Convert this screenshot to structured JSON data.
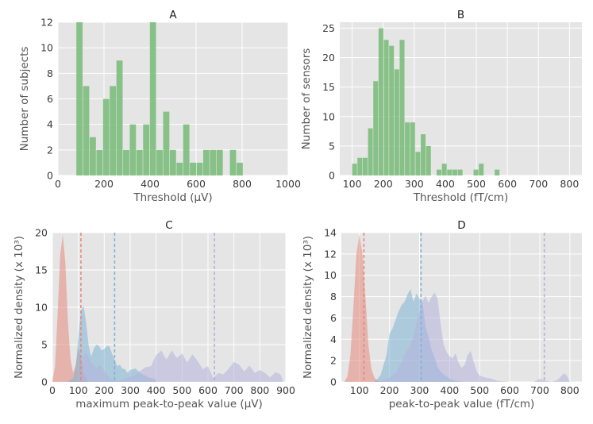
{
  "colors": {
    "panel_bg": "#e5e5e5",
    "grid": "#ffffff",
    "bar": "#77bb77",
    "red": "#e58a7e",
    "blue": "#7fb3d6",
    "purple": "#b5b2dc"
  },
  "chart_data": [
    {
      "id": "A",
      "type": "bar",
      "title": "A",
      "xlabel": "Threshold (μV)",
      "ylabel": "Number of subjects",
      "xlim": [
        0,
        1000
      ],
      "ylim": [
        0,
        12
      ],
      "xticks": [
        0,
        200,
        400,
        600,
        800,
        1000
      ],
      "yticks": [
        0,
        2,
        4,
        6,
        8,
        10,
        12
      ],
      "bin_start": 80,
      "bin_width": 29,
      "values": [
        12,
        7,
        3,
        2,
        6,
        7,
        9,
        2,
        4,
        2,
        4,
        12,
        2,
        5,
        2,
        1,
        4,
        1,
        1,
        2,
        2,
        2,
        0,
        2,
        1
      ]
    },
    {
      "id": "B",
      "type": "bar",
      "title": "B",
      "xlabel": "Threshold (fT/cm)",
      "ylabel": "Number of sensors",
      "xlim": [
        60,
        840
      ],
      "ylim": [
        0,
        26
      ],
      "xticks": [
        100,
        200,
        300,
        400,
        500,
        600,
        700,
        800
      ],
      "yticks": [
        0,
        5,
        10,
        15,
        20,
        25
      ],
      "bin_start": 100,
      "bin_width": 17,
      "values": [
        2,
        3,
        3,
        8,
        16,
        25,
        23,
        22,
        18,
        23,
        9,
        9,
        4,
        7,
        5,
        0,
        1,
        2,
        1,
        1,
        1,
        0,
        0,
        1,
        2,
        0,
        0,
        1
      ]
    },
    {
      "id": "C",
      "type": "area",
      "title": "C",
      "xlabel": "maximum peak-to-peak value (μV)",
      "ylabel": "Normalized density (x 10³)",
      "xlim": [
        0,
        900
      ],
      "ylim": [
        0,
        20
      ],
      "xticks": [
        0,
        100,
        200,
        300,
        400,
        500,
        600,
        700,
        800,
        900
      ],
      "yticks": [
        0,
        5,
        10,
        15,
        20
      ],
      "series": [
        {
          "name": "red",
          "color": "red",
          "x": [
            0,
            10,
            20,
            30,
            40,
            50,
            60,
            70,
            80,
            90,
            100,
            110,
            120,
            130,
            140
          ],
          "y": [
            0.2,
            2,
            9,
            17,
            19.7,
            16,
            8,
            3,
            1.2,
            2.3,
            4.5,
            3.5,
            1.2,
            0.4,
            0
          ]
        },
        {
          "name": "blue",
          "color": "blue",
          "x": [
            60,
            80,
            90,
            100,
            110,
            120,
            130,
            140,
            150,
            160,
            170,
            180,
            190,
            200,
            210,
            220,
            230,
            240,
            250,
            260,
            270,
            280,
            290,
            300,
            320,
            340,
            360,
            380,
            400
          ],
          "y": [
            0,
            0.5,
            2,
            6,
            9.5,
            10.2,
            8,
            4.8,
            3.4,
            4.5,
            5,
            4.8,
            4.2,
            4.4,
            4.8,
            4.8,
            3.8,
            3,
            2.1,
            2.3,
            1.8,
            1.7,
            1.2,
            1.6,
            1.8,
            1.2,
            0.8,
            0.5,
            0.3
          ]
        },
        {
          "name": "purple",
          "color": "purple",
          "x": [
            100,
            110,
            120,
            130,
            140,
            150,
            160,
            170,
            180,
            190,
            200,
            210,
            220,
            240,
            260,
            280,
            300,
            320,
            340,
            360,
            380,
            400,
            420,
            440,
            460,
            480,
            500,
            520,
            540,
            560,
            580,
            600,
            620,
            640,
            660,
            680,
            700,
            720,
            740,
            760,
            780,
            800,
            820,
            840,
            860,
            880,
            890
          ],
          "y": [
            0,
            1.6,
            3.6,
            3.9,
            3.3,
            2.6,
            2.2,
            1.8,
            2.3,
            2.0,
            1.5,
            1.0,
            0.5,
            0.2,
            0.1,
            0.4,
            0.7,
            0.9,
            1.5,
            2.0,
            2.1,
            3.6,
            4.2,
            3.0,
            4.2,
            3.2,
            3.8,
            2.6,
            3.7,
            2.8,
            1.7,
            2.1,
            0.5,
            1.2,
            1.0,
            1.8,
            2.7,
            2.3,
            1.4,
            2.2,
            1.2,
            1.6,
            1.2,
            0.6,
            1.3,
            1.0,
            0
          ]
        }
      ],
      "vlines": [
        {
          "x": 110,
          "color": "red"
        },
        {
          "x": 240,
          "color": "blue"
        },
        {
          "x": 625,
          "color": "purple"
        }
      ]
    },
    {
      "id": "D",
      "type": "area",
      "title": "D",
      "xlabel": "peak-to-peak value (fT/cm)",
      "ylabel": "Normalized density (x 10³)",
      "xlim": [
        40,
        840
      ],
      "ylim": [
        0,
        14
      ],
      "xticks": [
        100,
        200,
        300,
        400,
        500,
        600,
        700,
        800
      ],
      "yticks": [
        0,
        2,
        4,
        6,
        8,
        10,
        12,
        14
      ],
      "series": [
        {
          "name": "red",
          "color": "red",
          "x": [
            50,
            60,
            70,
            80,
            90,
            100,
            110,
            120,
            130,
            140,
            150,
            160,
            170
          ],
          "y": [
            0,
            0.5,
            2.5,
            7,
            12,
            13.8,
            12,
            8,
            3.5,
            1.2,
            0.4,
            0.1,
            0
          ]
        },
        {
          "name": "blue",
          "color": "blue",
          "x": [
            150,
            170,
            190,
            200,
            210,
            220,
            230,
            240,
            250,
            260,
            270,
            280,
            290,
            300,
            310,
            320,
            330,
            340,
            350,
            360,
            370,
            380,
            390,
            400,
            420,
            440
          ],
          "y": [
            0,
            0.6,
            2.5,
            4.5,
            5,
            5.8,
            6.6,
            7.2,
            7.5,
            8.2,
            8.7,
            7.5,
            8.3,
            7.8,
            7.5,
            5.2,
            4.2,
            3,
            2.3,
            1.4,
            1.0,
            0.7,
            0.5,
            0.3,
            0.1,
            0
          ]
        },
        {
          "name": "purple",
          "color": "purple",
          "x": [
            160,
            180,
            200,
            220,
            230,
            240,
            250,
            260,
            270,
            280,
            290,
            300,
            310,
            320,
            330,
            340,
            350,
            360,
            370,
            380,
            390,
            400,
            410,
            420,
            430,
            440,
            450,
            460,
            470,
            480,
            490,
            500,
            520,
            540,
            560,
            600,
            680,
            700,
            720,
            740,
            760,
            770,
            780,
            790,
            800
          ],
          "y": [
            0,
            0.2,
            0.4,
            0.8,
            1.3,
            1.8,
            2.5,
            3.0,
            3.5,
            4.2,
            5.5,
            6.5,
            7.6,
            8.1,
            7.4,
            8.0,
            8.4,
            7.8,
            5.5,
            3.5,
            2.8,
            2.4,
            2.2,
            2.7,
            1.8,
            1.3,
            1.6,
            2.5,
            2.9,
            1.9,
            1.0,
            0.6,
            0.4,
            0.3,
            0.1,
            0,
            0,
            0.3,
            0.1,
            0,
            0.2,
            0.5,
            0.8,
            0.6,
            0
          ]
        }
      ],
      "vlines": [
        {
          "x": 115,
          "color": "red"
        },
        {
          "x": 305,
          "color": "blue"
        },
        {
          "x": 715,
          "color": "purple"
        }
      ]
    }
  ]
}
